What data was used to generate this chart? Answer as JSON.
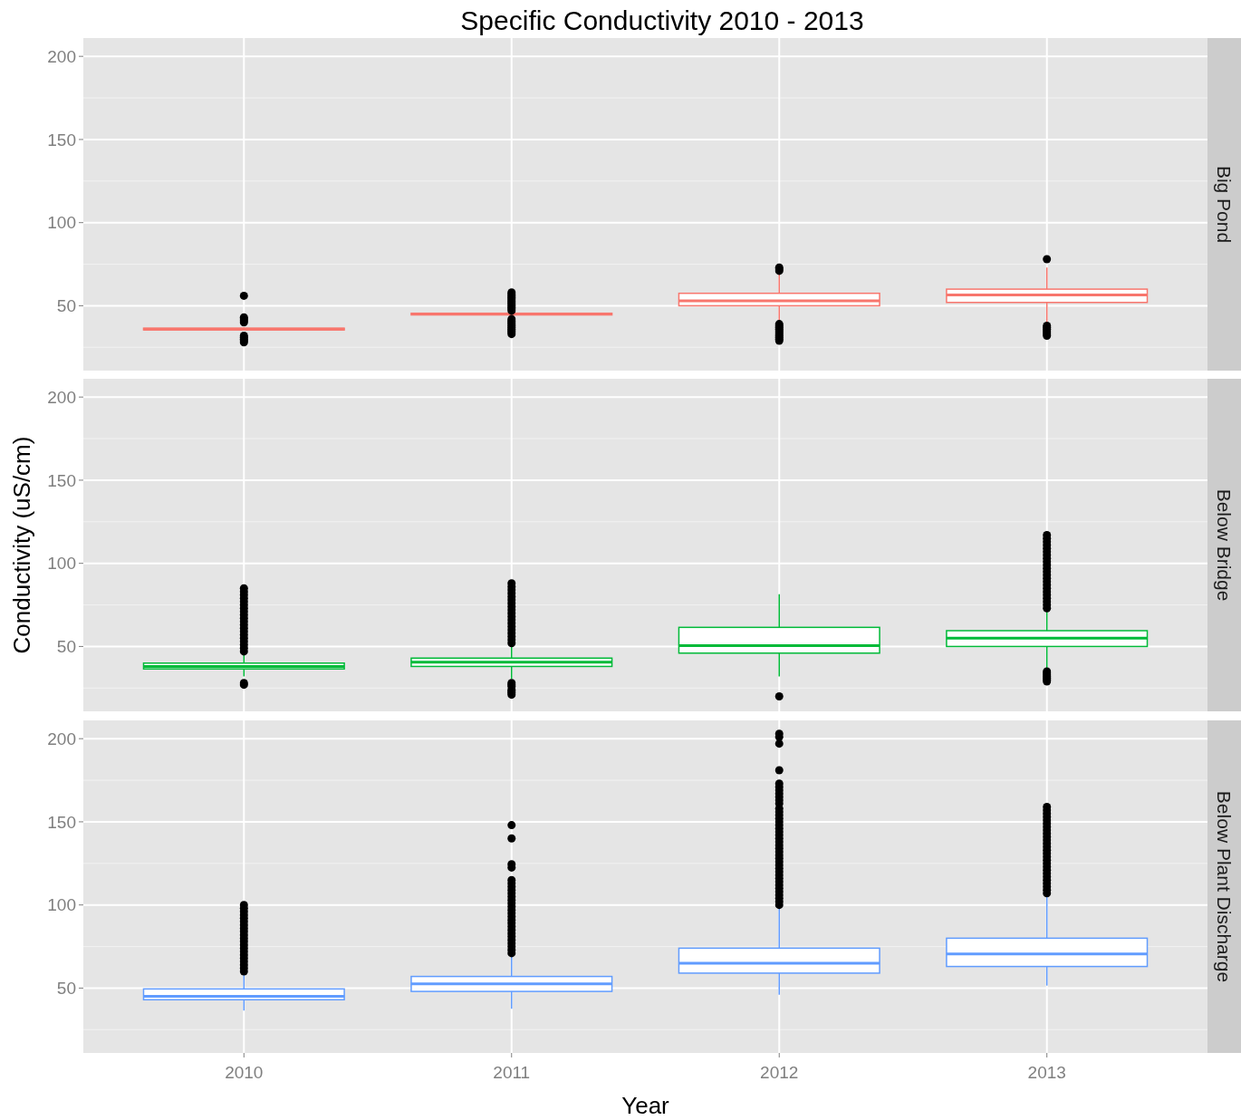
{
  "chart_data": [
    {
      "type": "box",
      "title": "Specific Conductivity 2010 - 2013",
      "subtitle": "Big Pond",
      "categories": [
        "2010",
        "2011",
        "2012",
        "2013"
      ],
      "ylim": [
        11,
        211
      ],
      "yticks": [
        50,
        100,
        150,
        200
      ],
      "grid": true,
      "tick_labels": "y",
      "series": [
        {
          "color": "#f8766d",
          "boxes": [
            {
              "low": 35,
              "q1": 35.5,
              "median": 36,
              "q3": 36.5,
              "high": 37,
              "outliers": [
                56,
                43,
                42,
                41,
                40,
                32,
                31,
                30,
                29,
                28
              ]
            },
            {
              "low": 44,
              "q1": 44.5,
              "median": 45,
              "q3": 45.5,
              "high": 46,
              "outliers": [
                58,
                57,
                56,
                55,
                54,
                53,
                52,
                51,
                50,
                49,
                48,
                47,
                42,
                41,
                40,
                39,
                38,
                37,
                36,
                35,
                34,
                33
              ]
            },
            {
              "low": 41,
              "q1": 50,
              "median": 53,
              "q3": 57.5,
              "high": 70.5,
              "outliers": [
                73,
                72,
                71,
                39,
                38,
                37,
                36,
                35,
                34,
                33,
                32,
                31,
                30,
                29
              ]
            },
            {
              "low": 40,
              "q1": 52,
              "median": 56.5,
              "q3": 60,
              "high": 73,
              "outliers": [
                78,
                38,
                37,
                36,
                35,
                34,
                33,
                32
              ]
            }
          ]
        }
      ]
    },
    {
      "type": "box",
      "subtitle": "Below Bridge",
      "ylabel": "Conductivity (uS/cm)",
      "categories": [
        "2010",
        "2011",
        "2012",
        "2013"
      ],
      "ylim": [
        11,
        211
      ],
      "yticks": [
        50,
        100,
        150,
        200
      ],
      "grid": true,
      "tick_labels": "y",
      "series": [
        {
          "color": "#00ba38",
          "boxes": [
            {
              "low": 32,
              "q1": 36.5,
              "median": 38,
              "q3": 40,
              "high": 46,
              "outliers": [
                85,
                83,
                81,
                79,
                77,
                75,
                73,
                71,
                69,
                67,
                65,
                63,
                61,
                59,
                57,
                55,
                53,
                51,
                49,
                47,
                28,
                27
              ]
            },
            {
              "low": 30.5,
              "q1": 38,
              "median": 40.5,
              "q3": 43,
              "high": 50.5,
              "outliers": [
                88,
                86,
                84,
                82,
                80,
                78,
                76,
                74,
                72,
                70,
                68,
                66,
                64,
                62,
                60,
                58,
                56,
                54,
                52,
                28,
                27,
                26,
                24,
                23,
                22,
                21
              ]
            },
            {
              "low": 32,
              "q1": 46,
              "median": 50.5,
              "q3": 61.5,
              "high": 81.5,
              "outliers": [
                20
              ]
            },
            {
              "low": 36,
              "q1": 50,
              "median": 55,
              "q3": 59.5,
              "high": 72.5,
              "outliers": [
                117,
                115,
                113,
                111,
                109,
                107,
                105,
                103,
                101,
                99,
                97,
                95,
                93,
                91,
                89,
                87,
                85,
                83,
                81,
                79,
                77,
                75,
                73,
                35,
                34,
                33,
                32,
                31,
                30,
                29
              ]
            }
          ]
        }
      ]
    },
    {
      "type": "box",
      "subtitle": "Below Plant Discharge",
      "xlabel": "Year",
      "categories": [
        "2010",
        "2011",
        "2012",
        "2013"
      ],
      "ylim": [
        11,
        211
      ],
      "yticks": [
        50,
        100,
        150,
        200
      ],
      "grid": true,
      "series": [
        {
          "color": "#619cff",
          "boxes": [
            {
              "low": 36.5,
              "q1": 43,
              "median": 45,
              "q3": 49.5,
              "high": 58,
              "outliers": [
                100,
                98,
                96,
                94,
                92,
                90,
                88,
                86,
                84,
                82,
                80,
                78,
                76,
                74,
                72,
                70,
                68,
                66,
                64,
                62,
                60
              ]
            },
            {
              "low": 37.5,
              "q1": 48,
              "median": 52.5,
              "q3": 57,
              "high": 69,
              "outliers": [
                148,
                140,
                124.5,
                122.5,
                115,
                113,
                111,
                109,
                107,
                105,
                103,
                101,
                99,
                97,
                95,
                93,
                91,
                89,
                87,
                85,
                83,
                81,
                79,
                77,
                75,
                73,
                71
              ]
            },
            {
              "low": 46,
              "q1": 59,
              "median": 65,
              "q3": 74,
              "high": 99,
              "outliers": [
                203,
                201,
                197,
                181,
                173,
                171,
                169,
                167,
                165,
                163,
                161,
                158,
                156,
                154,
                152,
                150,
                148,
                146,
                144,
                142,
                140,
                138,
                136,
                134,
                132,
                130,
                128,
                126,
                124,
                122,
                120,
                118,
                116,
                114,
                112,
                110,
                108,
                106,
                104,
                102,
                100
              ]
            },
            {
              "low": 51.5,
              "q1": 63,
              "median": 70.5,
              "q3": 80,
              "high": 105.5,
              "outliers": [
                159,
                157,
                155,
                153,
                151,
                149,
                147,
                145,
                143,
                141,
                139,
                137,
                135,
                133,
                131,
                129,
                127,
                125,
                123,
                121,
                119,
                117,
                115,
                113,
                111,
                109,
                107
              ]
            }
          ]
        }
      ]
    }
  ]
}
